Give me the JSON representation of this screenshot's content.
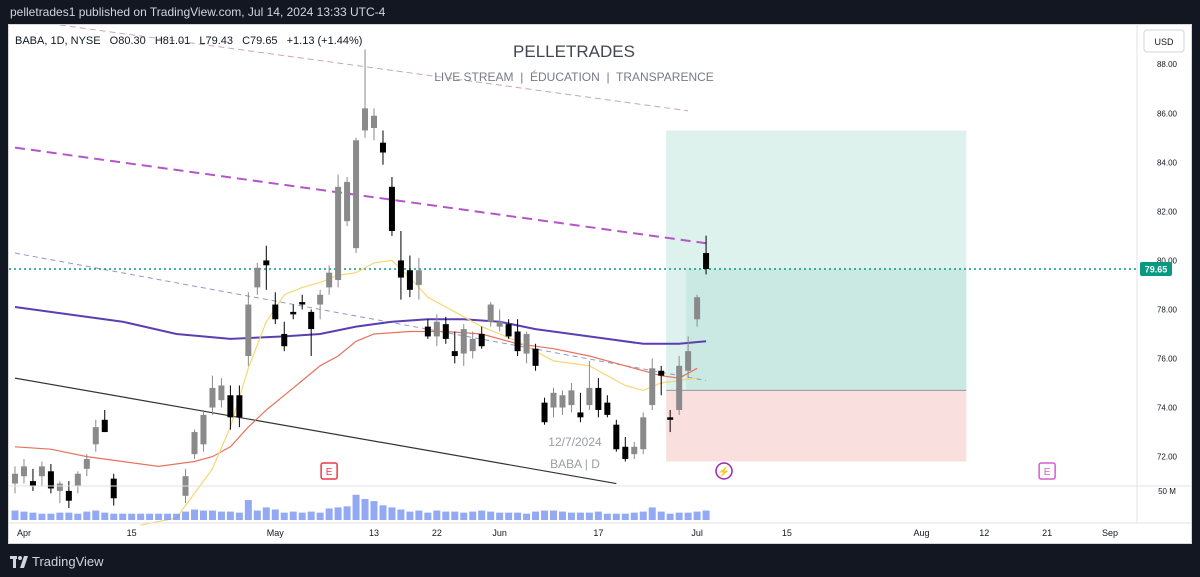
{
  "header": {
    "publish_line": "pelletrades1 published on TradingView.com, Jul 14, 2024 13:33 UTC-4"
  },
  "footer": {
    "brand": "TradingView",
    "logo_icon": "tradingview-logo-icon"
  },
  "legend": {
    "symbol": "BABA, 1D, NYSE",
    "open": "O80.30",
    "high": "H81.01",
    "low": "L79.43",
    "close": "C79.65",
    "change": "+1.13 (+1.44%)"
  },
  "watermark": {
    "title": "PELLETRADES",
    "subtitle": "LIVE STREAM  |  ÉDUCATION  |  TRANSPARENCE",
    "date": "12/7/2024",
    "symbol": "BABA | D"
  },
  "currency_button": "USD",
  "colors": {
    "candle_up": "#8a8a8a",
    "candle_down": "#000000",
    "sma_short": "#f5d774",
    "sma_mid": "#e6735e",
    "sma_long": "#5b3fb2",
    "trend_purple": "#b456c8",
    "price_line": "#089981",
    "volume": "#6f8cf0",
    "target_zone": "#b3dfd6",
    "stop_zone": "#f7c9c9",
    "earnings_red": "#f23645",
    "earnings_pink": "#d35dd4",
    "dividend_purple": "#9c27b0"
  },
  "chart_data": {
    "type": "candlestick",
    "ylim": [
      70.8,
      89.6
    ],
    "y_ticks": [
      "88.00",
      "86.00",
      "84.00",
      "82.00",
      "80.00",
      "78.00",
      "76.00",
      "74.00",
      "72.00"
    ],
    "y_tick_values": [
      88,
      86,
      84,
      82,
      80,
      78,
      76,
      74,
      72
    ],
    "volume_tick": "50 M",
    "last_price": "79.65",
    "last_price_value": 79.65,
    "x_ticks": [
      "Apr",
      "15",
      "May",
      "13",
      "22",
      "Jun",
      "17",
      "Jul",
      "15",
      "Aug",
      "12",
      "21",
      "Sep"
    ],
    "x_tick_index": [
      1,
      13,
      29,
      40,
      47,
      54,
      65,
      76,
      86,
      101,
      108,
      115,
      122
    ],
    "candles": [
      {
        "i": 0,
        "o": 70.9,
        "h": 71.6,
        "l": 70.5,
        "c": 71.3
      },
      {
        "i": 1,
        "o": 71.2,
        "h": 71.9,
        "l": 70.9,
        "c": 71.6
      },
      {
        "i": 2,
        "o": 71.0,
        "h": 71.5,
        "l": 70.6,
        "c": 70.8
      },
      {
        "i": 3,
        "o": 71.2,
        "h": 71.8,
        "l": 70.8,
        "c": 71.6
      },
      {
        "i": 4,
        "o": 71.4,
        "h": 71.7,
        "l": 70.5,
        "c": 70.7
      },
      {
        "i": 5,
        "o": 70.6,
        "h": 71.0,
        "l": 70.1,
        "c": 70.9
      },
      {
        "i": 6,
        "o": 70.6,
        "h": 71.0,
        "l": 69.9,
        "c": 70.2
      },
      {
        "i": 7,
        "o": 70.8,
        "h": 71.4,
        "l": 70.5,
        "c": 71.3
      },
      {
        "i": 8,
        "o": 71.5,
        "h": 72.1,
        "l": 71.2,
        "c": 71.9
      },
      {
        "i": 9,
        "o": 72.5,
        "h": 73.5,
        "l": 72.2,
        "c": 73.2
      },
      {
        "i": 10,
        "o": 73.5,
        "h": 73.9,
        "l": 73.0,
        "c": 73.0
      },
      {
        "i": 11,
        "o": 71.1,
        "h": 71.3,
        "l": 70.0,
        "c": 70.3
      },
      {
        "i": 19,
        "o": 70.4,
        "h": 71.5,
        "l": 70.1,
        "c": 71.2
      },
      {
        "i": 20,
        "o": 72.1,
        "h": 73.1,
        "l": 71.9,
        "c": 73.0
      },
      {
        "i": 21,
        "o": 72.5,
        "h": 73.9,
        "l": 72.2,
        "c": 73.7
      },
      {
        "i": 22,
        "o": 74.0,
        "h": 75.3,
        "l": 73.7,
        "c": 74.8
      },
      {
        "i": 23,
        "o": 74.3,
        "h": 75.2,
        "l": 74.0,
        "c": 74.9
      },
      {
        "i": 24,
        "o": 74.5,
        "h": 74.9,
        "l": 73.1,
        "c": 73.6
      },
      {
        "i": 25,
        "o": 74.5,
        "h": 74.9,
        "l": 73.2,
        "c": 73.6
      },
      {
        "i": 26,
        "o": 76.1,
        "h": 78.7,
        "l": 75.7,
        "c": 78.2
      },
      {
        "i": 27,
        "o": 78.9,
        "h": 79.9,
        "l": 78.6,
        "c": 79.7
      },
      {
        "i": 28,
        "o": 80.0,
        "h": 80.6,
        "l": 78.8,
        "c": 79.8
      },
      {
        "i": 29,
        "o": 78.2,
        "h": 78.7,
        "l": 77.4,
        "c": 77.6
      },
      {
        "i": 30,
        "o": 77.0,
        "h": 77.5,
        "l": 76.3,
        "c": 76.5
      },
      {
        "i": 31,
        "o": 77.9,
        "h": 78.2,
        "l": 77.6,
        "c": 77.8
      },
      {
        "i": 32,
        "o": 78.3,
        "h": 78.6,
        "l": 78.0,
        "c": 78.2
      },
      {
        "i": 33,
        "o": 77.9,
        "h": 78.0,
        "l": 76.1,
        "c": 77.2
      },
      {
        "i": 34,
        "o": 78.2,
        "h": 78.8,
        "l": 77.6,
        "c": 78.6
      },
      {
        "i": 35,
        "o": 78.9,
        "h": 79.8,
        "l": 78.6,
        "c": 79.5
      },
      {
        "i": 36,
        "o": 79.2,
        "h": 83.5,
        "l": 78.9,
        "c": 83.0
      },
      {
        "i": 37,
        "o": 81.6,
        "h": 83.4,
        "l": 81.4,
        "c": 83.2
      },
      {
        "i": 38,
        "o": 80.5,
        "h": 85.0,
        "l": 80.3,
        "c": 84.9
      },
      {
        "i": 39,
        "o": 85.3,
        "h": 88.6,
        "l": 85.0,
        "c": 86.2
      },
      {
        "i": 40,
        "o": 85.4,
        "h": 86.2,
        "l": 84.9,
        "c": 85.9
      },
      {
        "i": 41,
        "o": 84.8,
        "h": 85.3,
        "l": 83.9,
        "c": 84.4
      },
      {
        "i": 42,
        "o": 83.0,
        "h": 83.4,
        "l": 81.0,
        "c": 81.2
      },
      {
        "i": 43,
        "o": 80.0,
        "h": 81.2,
        "l": 78.4,
        "c": 79.3
      },
      {
        "i": 44,
        "o": 79.6,
        "h": 80.2,
        "l": 78.5,
        "c": 78.8
      },
      {
        "i": 45,
        "o": 79.0,
        "h": 80.1,
        "l": 78.4,
        "c": 79.6
      },
      {
        "i": 46,
        "o": 77.3,
        "h": 77.6,
        "l": 76.8,
        "c": 76.9
      },
      {
        "i": 47,
        "o": 76.9,
        "h": 77.8,
        "l": 76.5,
        "c": 77.5
      },
      {
        "i": 48,
        "o": 77.4,
        "h": 77.7,
        "l": 76.6,
        "c": 76.8
      },
      {
        "i": 49,
        "o": 76.3,
        "h": 77.1,
        "l": 75.8,
        "c": 76.1
      },
      {
        "i": 50,
        "o": 76.2,
        "h": 77.4,
        "l": 75.7,
        "c": 77.2
      },
      {
        "i": 51,
        "o": 76.3,
        "h": 77.1,
        "l": 76.0,
        "c": 76.8
      },
      {
        "i": 52,
        "o": 77.0,
        "h": 77.3,
        "l": 76.4,
        "c": 76.5
      },
      {
        "i": 53,
        "o": 77.5,
        "h": 78.3,
        "l": 77.3,
        "c": 78.2
      },
      {
        "i": 54,
        "o": 77.3,
        "h": 78.0,
        "l": 77.1,
        "c": 77.5
      },
      {
        "i": 55,
        "o": 77.4,
        "h": 77.6,
        "l": 76.8,
        "c": 76.9
      },
      {
        "i": 56,
        "o": 77.1,
        "h": 77.6,
        "l": 76.1,
        "c": 76.3
      },
      {
        "i": 57,
        "o": 76.2,
        "h": 77.1,
        "l": 75.8,
        "c": 77.0
      },
      {
        "i": 58,
        "o": 76.4,
        "h": 76.6,
        "l": 75.5,
        "c": 75.7
      },
      {
        "i": 59,
        "o": 74.2,
        "h": 74.4,
        "l": 73.3,
        "c": 73.4
      },
      {
        "i": 60,
        "o": 74.0,
        "h": 74.8,
        "l": 73.6,
        "c": 74.6
      },
      {
        "i": 61,
        "o": 74.0,
        "h": 74.7,
        "l": 73.7,
        "c": 74.5
      },
      {
        "i": 62,
        "o": 74.1,
        "h": 75.0,
        "l": 73.8,
        "c": 74.7
      },
      {
        "i": 63,
        "o": 73.8,
        "h": 74.6,
        "l": 73.4,
        "c": 73.6
      },
      {
        "i": 64,
        "o": 74.1,
        "h": 75.9,
        "l": 73.9,
        "c": 74.8
      },
      {
        "i": 65,
        "o": 74.8,
        "h": 75.2,
        "l": 73.6,
        "c": 73.9
      },
      {
        "i": 66,
        "o": 74.2,
        "h": 74.5,
        "l": 73.6,
        "c": 73.7
      },
      {
        "i": 67,
        "o": 73.3,
        "h": 73.5,
        "l": 72.2,
        "c": 72.3
      },
      {
        "i": 68,
        "o": 72.4,
        "h": 72.8,
        "l": 71.8,
        "c": 71.9
      },
      {
        "i": 69,
        "o": 72.1,
        "h": 72.6,
        "l": 71.9,
        "c": 72.4
      },
      {
        "i": 70,
        "o": 72.3,
        "h": 73.8,
        "l": 72.1,
        "c": 73.6
      },
      {
        "i": 71,
        "o": 74.1,
        "h": 76.0,
        "l": 73.9,
        "c": 75.6
      },
      {
        "i": 72,
        "o": 75.5,
        "h": 75.7,
        "l": 74.5,
        "c": 75.3
      },
      {
        "i": 73,
        "o": 73.6,
        "h": 73.9,
        "l": 73.0,
        "c": 73.5
      },
      {
        "i": 74,
        "o": 73.9,
        "h": 76.1,
        "l": 73.7,
        "c": 75.7
      },
      {
        "i": 75,
        "o": 75.5,
        "h": 76.9,
        "l": 75.2,
        "c": 76.3
      },
      {
        "i": 76,
        "o": 77.6,
        "h": 78.6,
        "l": 77.3,
        "c": 78.5
      },
      {
        "i": 77,
        "o": 80.3,
        "h": 81.01,
        "l": 79.43,
        "c": 79.65
      }
    ],
    "volume": [
      9,
      8,
      7,
      6,
      6,
      7,
      7,
      6,
      8,
      9,
      7,
      6,
      6,
      6,
      6,
      6,
      6,
      6,
      6,
      8,
      10,
      9,
      9,
      8,
      8,
      7,
      19,
      9,
      12,
      10,
      7,
      8,
      7,
      8,
      7,
      11,
      12,
      13,
      24,
      20,
      18,
      14,
      12,
      10,
      8,
      9,
      7,
      9,
      8,
      8,
      7,
      8,
      9,
      8,
      7,
      7,
      7,
      6,
      8,
      9,
      9,
      8,
      7,
      7,
      7,
      8,
      6,
      6,
      6,
      7,
      8,
      12,
      8,
      6,
      7,
      7,
      8,
      9
    ],
    "indicators": {
      "sma_short": [
        [
          14,
          69.2
        ],
        [
          18,
          69.5
        ],
        [
          22,
          71.5
        ],
        [
          24,
          73.2
        ],
        [
          26,
          75.6
        ],
        [
          28,
          77.5
        ],
        [
          30,
          78.6
        ],
        [
          32,
          78.9
        ],
        [
          34,
          79.1
        ],
        [
          36,
          79.4
        ],
        [
          38,
          79.5
        ],
        [
          40,
          79.9
        ],
        [
          42,
          80.0
        ],
        [
          44,
          79.3
        ],
        [
          46,
          78.5
        ],
        [
          48,
          78.1
        ],
        [
          50,
          77.7
        ],
        [
          52,
          77.3
        ],
        [
          54,
          77.0
        ],
        [
          56,
          76.7
        ],
        [
          58,
          76.3
        ],
        [
          60,
          75.9
        ],
        [
          62,
          75.8
        ],
        [
          64,
          75.7
        ],
        [
          66,
          75.3
        ],
        [
          68,
          74.9
        ],
        [
          70,
          74.7
        ],
        [
          72,
          75.0
        ],
        [
          74,
          75.1
        ],
        [
          76,
          75.2
        ]
      ],
      "sma_mid": [
        [
          0,
          72.4
        ],
        [
          4,
          72.3
        ],
        [
          8,
          72.0
        ],
        [
          12,
          71.8
        ],
        [
          16,
          71.6
        ],
        [
          20,
          71.8
        ],
        [
          22,
          72.0
        ],
        [
          24,
          72.4
        ],
        [
          26,
          73.2
        ],
        [
          28,
          73.9
        ],
        [
          30,
          74.5
        ],
        [
          32,
          75.1
        ],
        [
          34,
          75.7
        ],
        [
          36,
          76.1
        ],
        [
          38,
          76.7
        ],
        [
          40,
          77.0
        ],
        [
          44,
          77.1
        ],
        [
          48,
          77.1
        ],
        [
          52,
          77.0
        ],
        [
          56,
          76.6
        ],
        [
          60,
          76.4
        ],
        [
          64,
          76.1
        ],
        [
          68,
          75.7
        ],
        [
          72,
          75.3
        ],
        [
          74,
          75.2
        ],
        [
          76,
          75.6
        ]
      ],
      "sma_long": [
        [
          0,
          78.1
        ],
        [
          6,
          77.8
        ],
        [
          12,
          77.5
        ],
        [
          18,
          77.0
        ],
        [
          24,
          76.8
        ],
        [
          30,
          76.9
        ],
        [
          34,
          77.0
        ],
        [
          38,
          77.3
        ],
        [
          42,
          77.5
        ],
        [
          46,
          77.6
        ],
        [
          50,
          77.6
        ],
        [
          54,
          77.5
        ],
        [
          58,
          77.2
        ],
        [
          62,
          77.0
        ],
        [
          66,
          76.8
        ],
        [
          70,
          76.6
        ],
        [
          74,
          76.6
        ],
        [
          77,
          76.7
        ]
      ]
    },
    "drawings": {
      "upper_channel": [
        [
          5,
          89.6
        ],
        [
          75,
          86.1
        ]
      ],
      "purple_resistance": [
        [
          0,
          84.6
        ],
        [
          77,
          80.7
        ]
      ],
      "thin_support": [
        [
          0,
          80.3
        ],
        [
          77,
          75.1
        ]
      ],
      "black_support": [
        [
          0,
          75.2
        ],
        [
          67,
          70.9
        ]
      ],
      "target_top": 85.3,
      "entry": 74.7,
      "stop": 71.8,
      "position_start": 73,
      "position_end": 106
    },
    "events": [
      {
        "i": 35,
        "label": "E",
        "kind": "earnings-red"
      },
      {
        "i": 79,
        "label": "⚡",
        "kind": "dividend"
      },
      {
        "i": 115,
        "label": "E",
        "kind": "earnings-pink"
      }
    ]
  }
}
